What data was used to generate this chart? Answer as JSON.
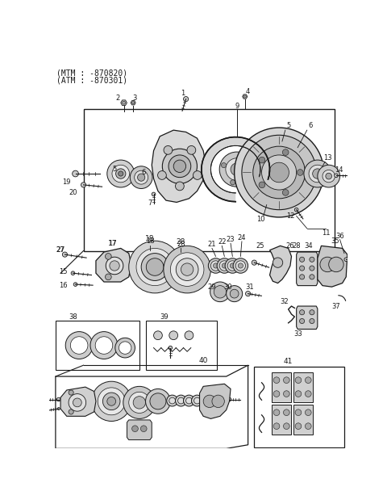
{
  "header1": "(MTM : -870820)",
  "header2": "(ATM : -870301)",
  "bg_color": "#ffffff",
  "lc": "#1a1a1a",
  "tc": "#1a1a1a",
  "fig_width": 4.8,
  "fig_height": 6.24,
  "dpi": 100
}
